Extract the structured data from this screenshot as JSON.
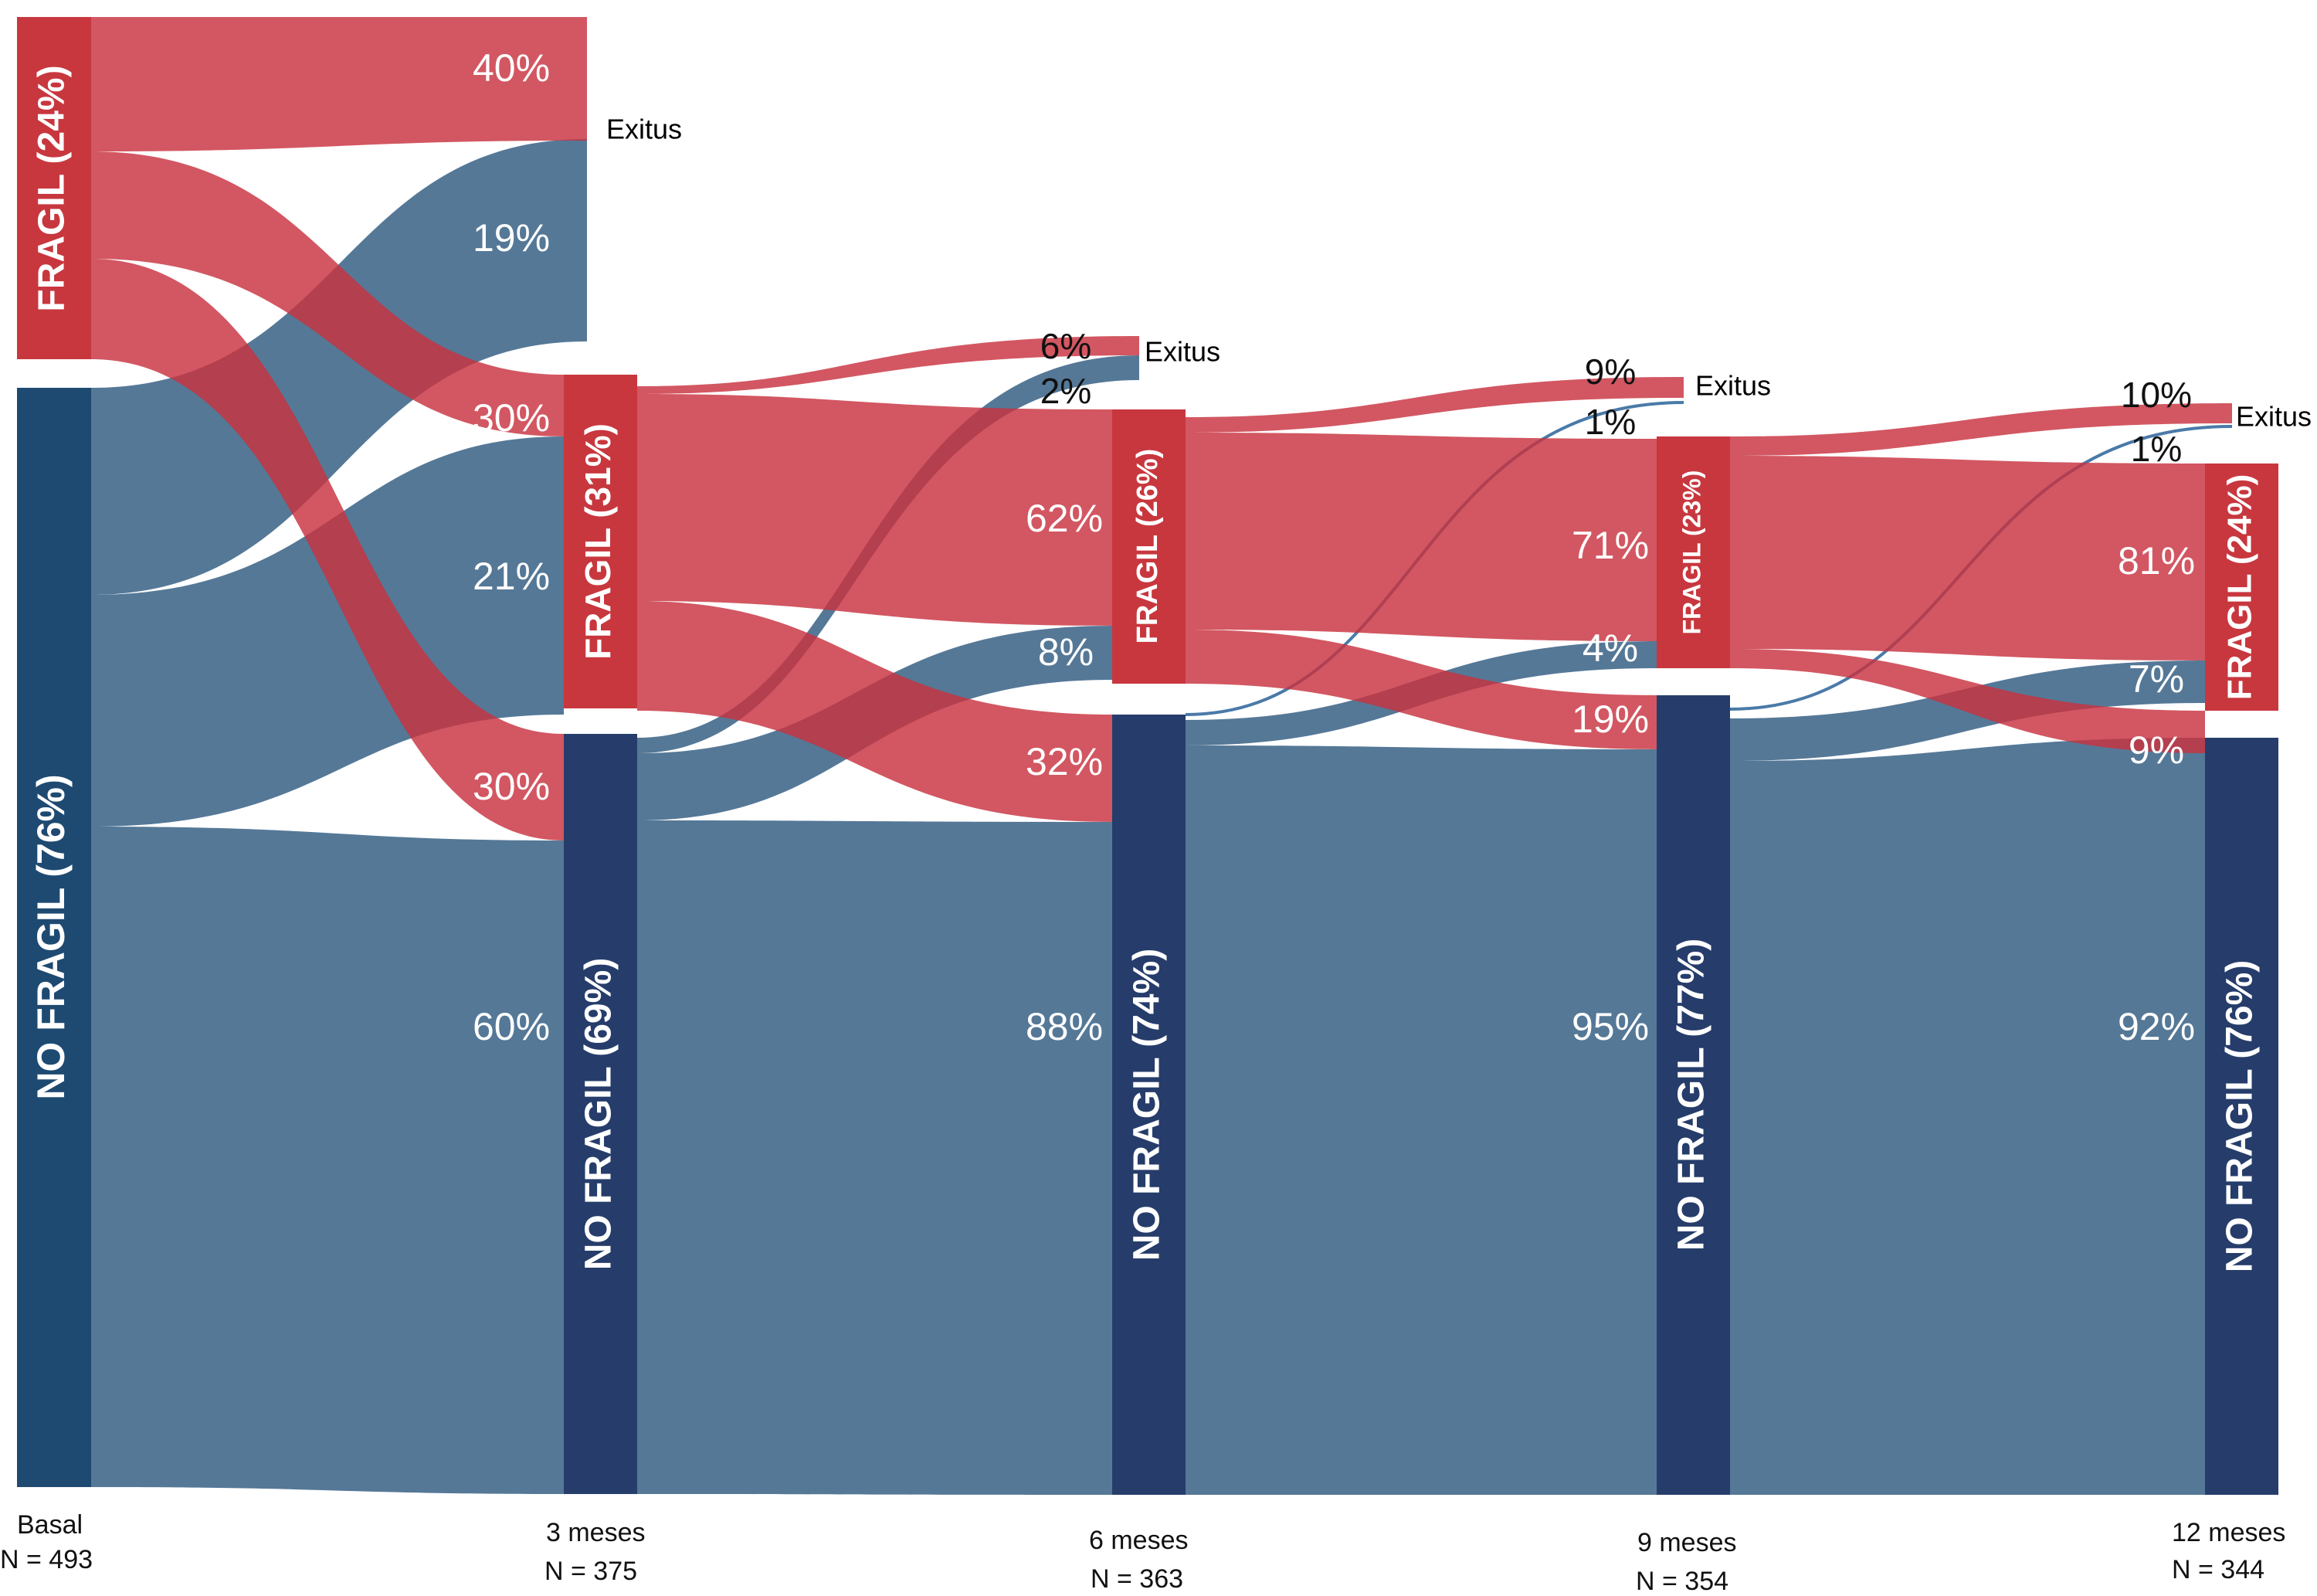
{
  "stages": [
    {
      "name": "Basal",
      "n": "N = 493"
    },
    {
      "name": "3 meses",
      "n": "N = 375"
    },
    {
      "name": "6 meses",
      "n": "N = 363"
    },
    {
      "name": "9 meses",
      "n": "N = 354"
    },
    {
      "name": "12 meses",
      "n": "N = 344"
    }
  ],
  "nodes": {
    "basal_fragil": "FRAGIL (24%)",
    "basal_no_fragil": "NO FRAGIL (76%)",
    "m3_fragil": "FRAGIL (31%)",
    "m3_no_fragil": "NO FRAGIL (69%)",
    "m6_fragil": "FRAGIL (26%)",
    "m6_no_fragil": "NO FRAGIL (74%)",
    "m9_fragil": "FRAGIL (23%)",
    "m9_no_fragil": "NO FRAGIL (77%)",
    "m12_fragil": "FRAGIL (24%)",
    "m12_no_fragil": "NO FRAGIL (76%)",
    "exitus": "Exitus"
  },
  "flow_labels": {
    "s1_fragil_exitus": "40%",
    "s1_nofragil_exitus": "19%",
    "s1_fragil_fragil": "30%",
    "s1_nofragil_fragil": "21%",
    "s1_fragil_nofragil": "30%",
    "s1_nofragil_nofragil": "60%",
    "s2_fragil_exitus": "6%",
    "s2_nofragil_exitus": "2%",
    "s2_fragil_fragil": "62%",
    "s2_nofragil_fragil": "8%",
    "s2_fragil_nofragil": "32%",
    "s2_nofragil_nofragil": "88%",
    "s3_fragil_exitus": "9%",
    "s3_nofragil_exitus": "1%",
    "s3_fragil_fragil": "71%",
    "s3_nofragil_fragil": "4%",
    "s3_fragil_nofragil": "19%",
    "s3_nofragil_nofragil": "95%",
    "s4_fragil_exitus": "10%",
    "s4_nofragil_exitus": "1%",
    "s4_fragil_fragil": "81%",
    "s4_nofragil_fragil": "7%",
    "s4_fragil_nofragil": "9%",
    "s4_nofragil_nofragil": "92%"
  },
  "colors": {
    "fragil": "#c8373e",
    "fragil_flow": "#c8323f",
    "no_fragil_node": "#263d6b",
    "no_fragil_flow": "#2f5a80"
  }
}
